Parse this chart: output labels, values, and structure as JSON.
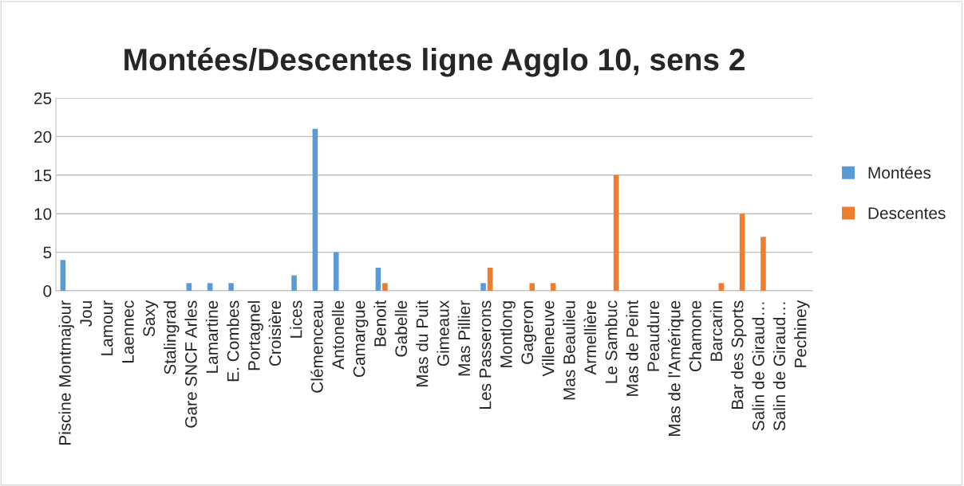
{
  "chart_data": {
    "type": "bar",
    "title": "Montées/Descentes ligne Agglo 10, sens 2",
    "categories": [
      "Piscine Montmajour",
      "Jou",
      "Lamour",
      "Laennec",
      "Saxy",
      "Stalingrad",
      "Gare SNCF Arles",
      "Lamartine",
      "E. Combes",
      "Portagnel",
      "Croisière",
      "Lices",
      "Clémenceau",
      "Antonelle",
      "Camargue",
      "Benoit",
      "Gabelle",
      "Mas du Puit",
      "Gimeaux",
      "Mas Pillier",
      "Les Passerons",
      "Montlong",
      "Gageron",
      "Villeneuve",
      "Mas Beaulieu",
      "Armellière",
      "Le Sambuc",
      "Mas de Peint",
      "Peaudure",
      "Mas de l'Amérique",
      "Chamone",
      "Barcarin",
      "Bar des Sports",
      "Salin de Giraud…",
      "Salin de Giraud…",
      "Pechiney"
    ],
    "series": [
      {
        "name": "Montées",
        "color": "#5b9bd5",
        "values": [
          4,
          0,
          0,
          0,
          0,
          0,
          1,
          1,
          1,
          0,
          0,
          2,
          21,
          5,
          0,
          3,
          0,
          0,
          0,
          0,
          1,
          0,
          0,
          0,
          0,
          0,
          0,
          0,
          0,
          0,
          0,
          0,
          0,
          0,
          0,
          0
        ]
      },
      {
        "name": "Descentes",
        "color": "#ed7d31",
        "values": [
          0,
          0,
          0,
          0,
          0,
          0,
          0,
          0,
          0,
          0,
          0,
          0,
          0,
          0,
          0,
          1,
          0,
          0,
          0,
          0,
          3,
          0,
          1,
          1,
          0,
          0,
          15,
          0,
          0,
          0,
          0,
          1,
          10,
          7,
          0,
          0
        ]
      }
    ],
    "ylim": [
      0,
      25
    ],
    "yticks": [
      0,
      5,
      10,
      15,
      20,
      25
    ],
    "grid": "y",
    "legend": "right"
  }
}
